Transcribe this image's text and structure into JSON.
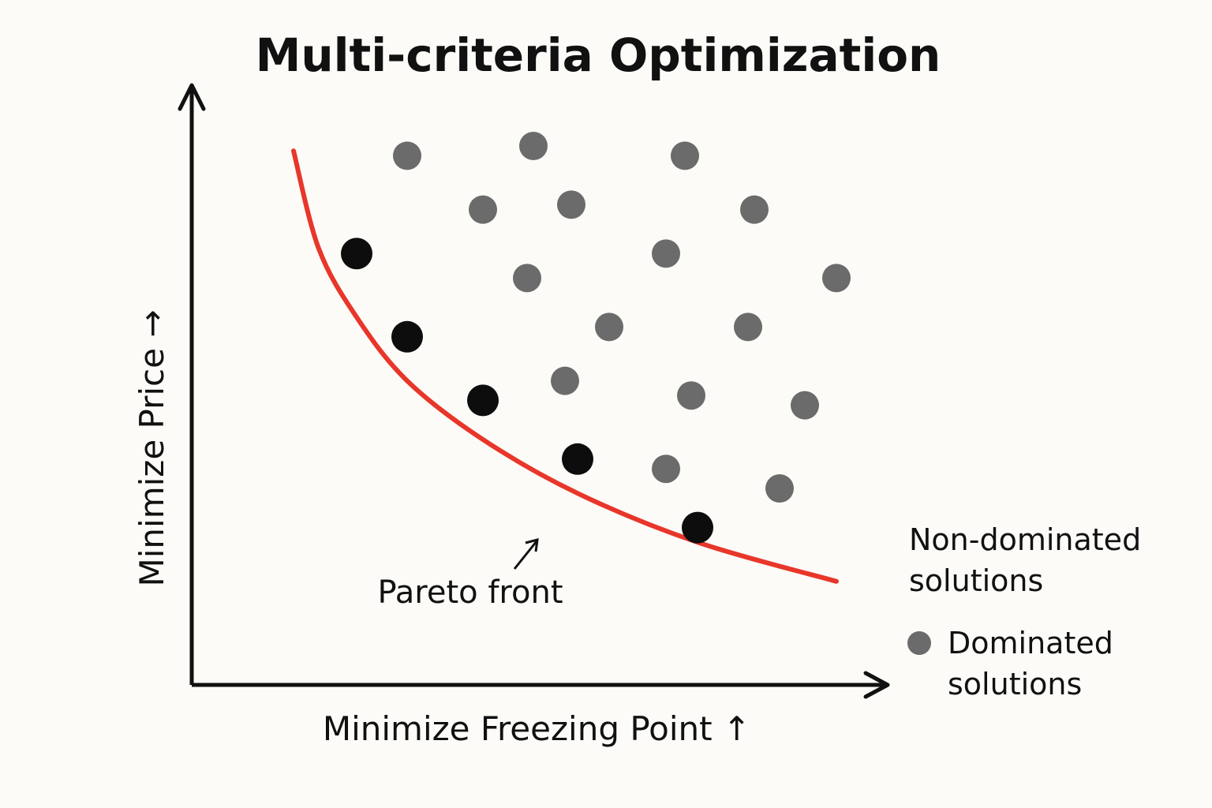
{
  "chart_data": {
    "type": "scatter",
    "title": "Multi-criteria Optimization",
    "xlabel": "Minimize Freezing Point ↑",
    "ylabel": "Minimize Price →",
    "xlim": [
      0,
      100
    ],
    "ylim": [
      0,
      100
    ],
    "grid": false,
    "legend_position": "right",
    "series": [
      {
        "name": "Non-dominated solutions",
        "color": "#0d0d0d",
        "x": [
          19,
          27,
          39,
          54,
          73
        ],
        "y": [
          78,
          61,
          48,
          36,
          22
        ]
      },
      {
        "name": "Dominated solutions",
        "color": "#6b6b6b",
        "x": [
          27,
          47,
          71,
          39,
          53,
          82,
          68,
          46,
          95,
          59,
          81,
          52,
          72,
          90,
          68,
          86
        ],
        "y": [
          98,
          100,
          98,
          87,
          88,
          87,
          78,
          73,
          73,
          63,
          63,
          52,
          49,
          47,
          34,
          30
        ]
      }
    ],
    "pareto_front": {
      "color": "#e8362a",
      "x": [
        9,
        13,
        19,
        27,
        39,
        54,
        73,
        95
      ],
      "y": [
        99,
        79,
        65,
        52,
        40,
        29,
        19,
        11
      ]
    },
    "annotations": [
      {
        "text": "Pareto front",
        "x": 40,
        "y": 17
      }
    ]
  }
}
